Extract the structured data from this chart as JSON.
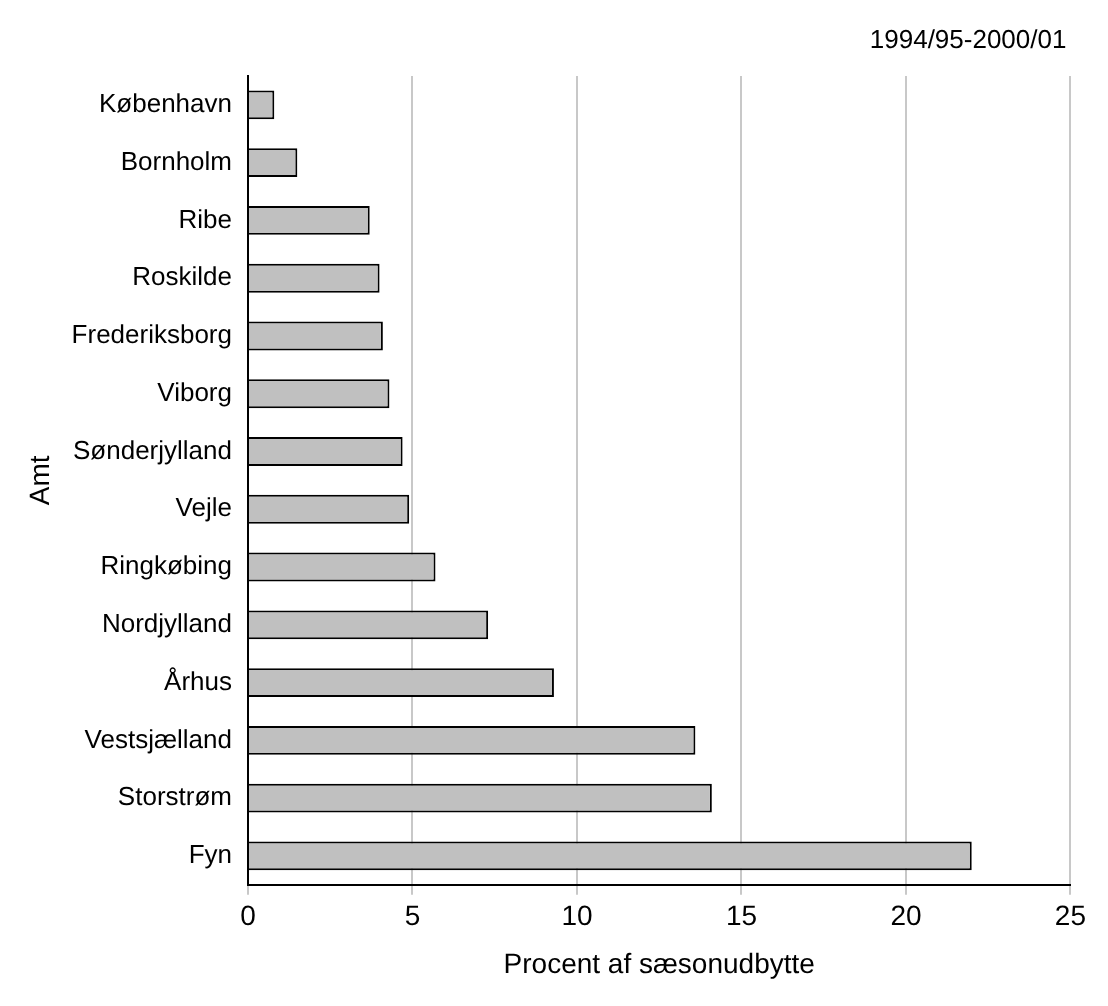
{
  "chart_data": {
    "type": "bar",
    "orientation": "horizontal",
    "xlabel": "Procent af sæsonudbytte",
    "ylabel": "Amt",
    "annotations": [
      "1994/95-2000/01"
    ],
    "categories": [
      "København",
      "Bornholm",
      "Ribe",
      "Roskilde",
      "Frederiksborg",
      "Viborg",
      "Sønderjylland",
      "Vejle",
      "Ringkøbing",
      "Nordjylland",
      "Århus",
      "Vestsjælland",
      "Storstrøm",
      "Fyn"
    ],
    "values": [
      0.8,
      1.5,
      3.7,
      4.0,
      4.1,
      4.3,
      4.7,
      4.9,
      5.7,
      7.3,
      9.3,
      13.6,
      14.1,
      22.0
    ],
    "color": "#c0c0c0",
    "xlim": [
      0,
      25
    ],
    "xticks": [
      0,
      5,
      10,
      15,
      20,
      25
    ],
    "grid": "x",
    "legend": false
  }
}
